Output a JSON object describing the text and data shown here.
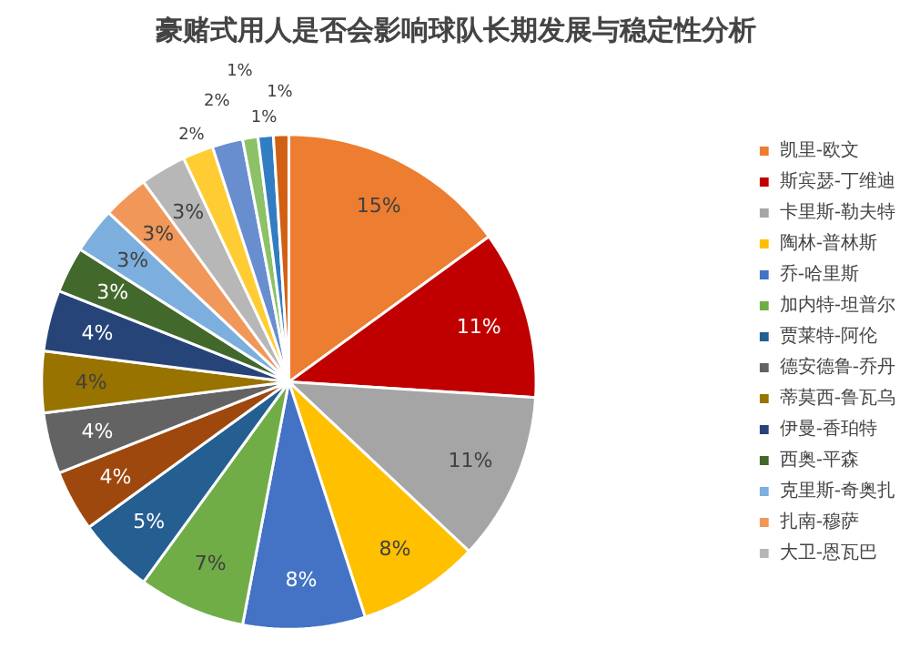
{
  "chart_data": {
    "type": "pie",
    "title": "豪赌式用人是否会影响球队长期发展与稳定性分析",
    "categories": [
      "凯里-欧文",
      "斯宾瑟-丁维迪",
      "卡里斯-勒夫特",
      "陶林-普林斯",
      "乔-哈里斯",
      "加内特-坦普尔",
      "贾莱特-阿伦",
      null,
      "德安德鲁-乔丹",
      "蒂莫西-鲁瓦乌",
      "伊曼-香珀特",
      "西奥-平森",
      "克里斯-奇奥扎",
      "扎南-穆萨",
      "大卫-恩瓦巴",
      null,
      null,
      null,
      null,
      null
    ],
    "values": [
      15,
      11,
      11,
      8,
      8,
      7,
      5,
      4,
      4,
      4,
      4,
      3,
      3,
      3,
      3,
      2,
      2,
      1,
      1,
      1
    ],
    "colors": [
      "#ed7d31",
      "#c00000",
      "#a5a5a5",
      "#ffc000",
      "#4472c4",
      "#70ad47",
      "#255e91",
      "#9e480e",
      "#636363",
      "#997300",
      "#264478",
      "#43682b",
      "#7cafdd",
      "#f1975a",
      "#b7b7b7",
      "#ffcd33",
      "#698ed0",
      "#8cc168",
      "#327dc2",
      "#d26012"
    ],
    "value_labels": [
      "15%",
      "11%",
      "11%",
      "8%",
      "8%",
      "7%",
      "5%",
      "4%",
      "4%",
      "4%",
      "4%",
      "3%",
      "3%",
      "3%",
      "3%",
      "2%",
      "2%",
      "1%",
      "1%",
      "1%"
    ],
    "legend": "right"
  }
}
